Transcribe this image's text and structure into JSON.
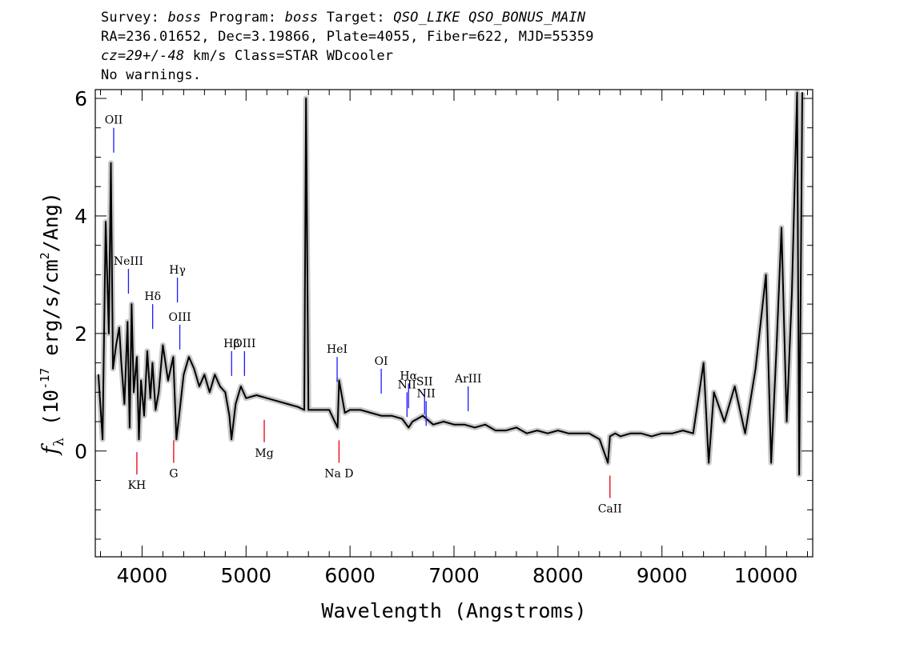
{
  "header": {
    "line1": {
      "p1": "Survey: ",
      "survey": "boss",
      "p2": " Program: ",
      "program": "boss",
      "p3": " Target: ",
      "target": "QSO_LIKE QSO_BONUS_MAIN"
    },
    "line2": "RA=236.01652, Dec=3.19866, Plate=4055, Fiber=622, MJD=55359",
    "line3": {
      "cz": "cz=29+/-48",
      "rest": " km/s Class=STAR WDcooler"
    },
    "line4": "No warnings."
  },
  "colors": {
    "flux": "#000000",
    "error": "#c8c8c8",
    "emission_marker": "#1a1aff",
    "absorption_marker": "#e8000b"
  },
  "chart_data": {
    "type": "line",
    "xlabel": "Wavelength (Angstroms)",
    "ylabel_text": {
      "f": "f",
      "sub": "λ",
      "open": " (10",
      "exp": "-17",
      "mid": " erg/s/cm",
      "exp2": "2",
      "close": "/Ang)"
    },
    "xlim": [
      3550,
      10450
    ],
    "ylim": [
      -1.8,
      6.15
    ],
    "x_ticks": [
      4000,
      5000,
      6000,
      7000,
      8000,
      9000,
      10000
    ],
    "y_ticks": [
      0,
      2,
      4,
      6
    ],
    "series": [
      {
        "role": "flux",
        "x": [
          3580,
          3620,
          3650,
          3680,
          3700,
          3720,
          3750,
          3780,
          3800,
          3830,
          3860,
          3880,
          3900,
          3920,
          3950,
          3970,
          3990,
          4020,
          4050,
          4080,
          4100,
          4130,
          4160,
          4200,
          4250,
          4300,
          4330,
          4350,
          4400,
          4450,
          4500,
          4550,
          4600,
          4650,
          4700,
          4750,
          4800,
          4840,
          4860,
          4900,
          4950,
          5000,
          5100,
          5200,
          5300,
          5400,
          5500,
          5560,
          5577,
          5600,
          5700,
          5800,
          5880,
          5895,
          5950,
          6000,
          6100,
          6200,
          6300,
          6400,
          6500,
          6563,
          6600,
          6700,
          6800,
          6900,
          7000,
          7100,
          7200,
          7300,
          7400,
          7500,
          7600,
          7700,
          7800,
          7900,
          8000,
          8100,
          8200,
          8300,
          8400,
          8480,
          8500,
          8550,
          8600,
          8700,
          8800,
          8900,
          9000,
          9100,
          9200,
          9300,
          9400,
          9450,
          9500,
          9600,
          9700,
          9800,
          9900,
          10000,
          10050,
          10100,
          10150,
          10200,
          10250,
          10300,
          10320,
          10350
        ],
        "y": [
          1.3,
          0.2,
          3.9,
          2.0,
          4.9,
          1.4,
          1.8,
          2.1,
          1.5,
          0.8,
          2.2,
          0.4,
          2.5,
          1.0,
          1.6,
          0.2,
          1.2,
          0.6,
          1.7,
          0.9,
          1.5,
          0.7,
          1.0,
          1.8,
          1.2,
          1.6,
          0.2,
          0.5,
          1.3,
          1.6,
          1.4,
          1.1,
          1.3,
          1.0,
          1.3,
          1.1,
          1.0,
          0.6,
          0.2,
          0.8,
          1.1,
          0.9,
          0.95,
          0.9,
          0.85,
          0.8,
          0.75,
          0.7,
          6.0,
          0.7,
          0.7,
          0.7,
          0.4,
          1.2,
          0.65,
          0.7,
          0.7,
          0.65,
          0.6,
          0.6,
          0.55,
          0.4,
          0.5,
          0.6,
          0.45,
          0.5,
          0.45,
          0.45,
          0.4,
          0.45,
          0.35,
          0.35,
          0.4,
          0.3,
          0.35,
          0.3,
          0.35,
          0.3,
          0.3,
          0.3,
          0.2,
          -0.2,
          0.25,
          0.3,
          0.25,
          0.3,
          0.3,
          0.25,
          0.3,
          0.3,
          0.35,
          0.3,
          1.5,
          -0.2,
          1.0,
          0.5,
          1.1,
          0.3,
          1.4,
          3.0,
          -0.2,
          1.7,
          3.8,
          0.5,
          2.7,
          6.1,
          -0.4,
          6.1
        ]
      }
    ],
    "emission_lines": [
      {
        "label": "OII",
        "x": 3727,
        "y": 5.5
      },
      {
        "label": "NeIII",
        "x": 3869,
        "y": 3.1
      },
      {
        "label": "Hδ",
        "x": 4102,
        "y": 2.5
      },
      {
        "label": "Hγ",
        "x": 4340,
        "y": 2.95
      },
      {
        "label": "OIII",
        "x": 4363,
        "y": 2.15
      },
      {
        "label": "Hβ",
        "x": 4861,
        "y": 1.7
      },
      {
        "label": "OIII",
        "x": 4985,
        "y": 1.7
      },
      {
        "label": "HeI",
        "x": 5876,
        "y": 1.6
      },
      {
        "label": "OI",
        "x": 6300,
        "y": 1.4
      },
      {
        "label": "NII",
        "x": 6548,
        "y": 1.0
      },
      {
        "label": "Hα",
        "x": 6563,
        "y": 1.15
      },
      {
        "label": "SII",
        "x": 6717,
        "y": 1.05
      },
      {
        "label": "NII",
        "x": 6732,
        "y": 0.85
      },
      {
        "label": "ArIII",
        "x": 7136,
        "y": 1.1
      }
    ],
    "absorption_lines": [
      {
        "label": "KH",
        "x": 3950,
        "y": -0.4
      },
      {
        "label": "G",
        "x": 4304,
        "y": -0.2
      },
      {
        "label": "Mg",
        "x": 5175,
        "y": 0.15
      },
      {
        "label": "Na D",
        "x": 5894,
        "y": -0.2
      },
      {
        "label": "CaII",
        "x": 8500,
        "y": -0.8
      }
    ]
  }
}
